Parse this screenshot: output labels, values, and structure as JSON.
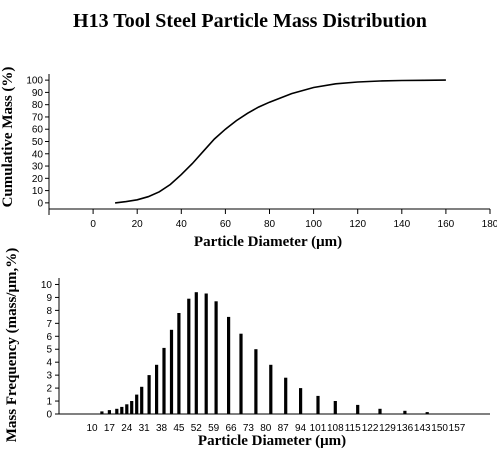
{
  "title": "H13 Tool Steel Particle Mass Distribution",
  "chart_data": [
    {
      "type": "line",
      "xlabel": "Particle Diameter (μm)",
      "ylabel": "Cumulative Mass (%)",
      "xlim": [
        -20,
        180
      ],
      "ylim": [
        -5,
        105
      ],
      "xticks": [
        0,
        20,
        40,
        60,
        80,
        100,
        120,
        140,
        160,
        180
      ],
      "yticks": [
        0,
        10,
        20,
        30,
        40,
        50,
        60,
        70,
        80,
        90,
        100
      ],
      "grid": false,
      "series": [
        {
          "x": [
            10,
            15,
            20,
            25,
            30,
            35,
            40,
            45,
            50,
            55,
            60,
            65,
            70,
            75,
            80,
            90,
            100,
            110,
            120,
            130,
            140,
            150,
            160
          ],
          "y": [
            0,
            1,
            2.5,
            5,
            9,
            15,
            23,
            32,
            42,
            52,
            60,
            67,
            73,
            78,
            82,
            89,
            94,
            97,
            98.5,
            99.3,
            99.7,
            99.9,
            100
          ]
        }
      ]
    },
    {
      "type": "bar",
      "xlabel": "Particle Diameter (μm)",
      "ylabel": "Mass Frequency (mass/μm,%)",
      "ylim": [
        0,
        10.5
      ],
      "yticks": [
        0,
        1,
        2,
        3,
        4,
        5,
        6,
        7,
        8,
        9,
        10
      ],
      "xtick_labels": [
        "10",
        "17",
        "24",
        "31",
        "38",
        "45",
        "52",
        "59",
        "66",
        "73",
        "80",
        "87",
        "94",
        "101",
        "108",
        "115",
        "122",
        "129",
        "136",
        "143",
        "150",
        "157"
      ],
      "grid": false,
      "x": [
        14,
        17,
        20,
        22,
        24,
        26,
        28,
        30,
        33,
        36,
        39,
        42,
        45,
        49,
        52,
        56,
        60,
        65,
        70,
        76,
        82,
        88,
        94,
        101,
        108,
        117,
        126,
        136,
        145
      ],
      "values": [
        0.2,
        0.3,
        0.4,
        0.55,
        0.75,
        1.0,
        1.5,
        2.1,
        3.0,
        3.8,
        5.1,
        6.5,
        7.8,
        8.9,
        9.4,
        9.3,
        8.7,
        7.5,
        6.2,
        5.0,
        3.8,
        2.8,
        2.0,
        1.4,
        1.0,
        0.7,
        0.4,
        0.25,
        0.15
      ]
    }
  ]
}
